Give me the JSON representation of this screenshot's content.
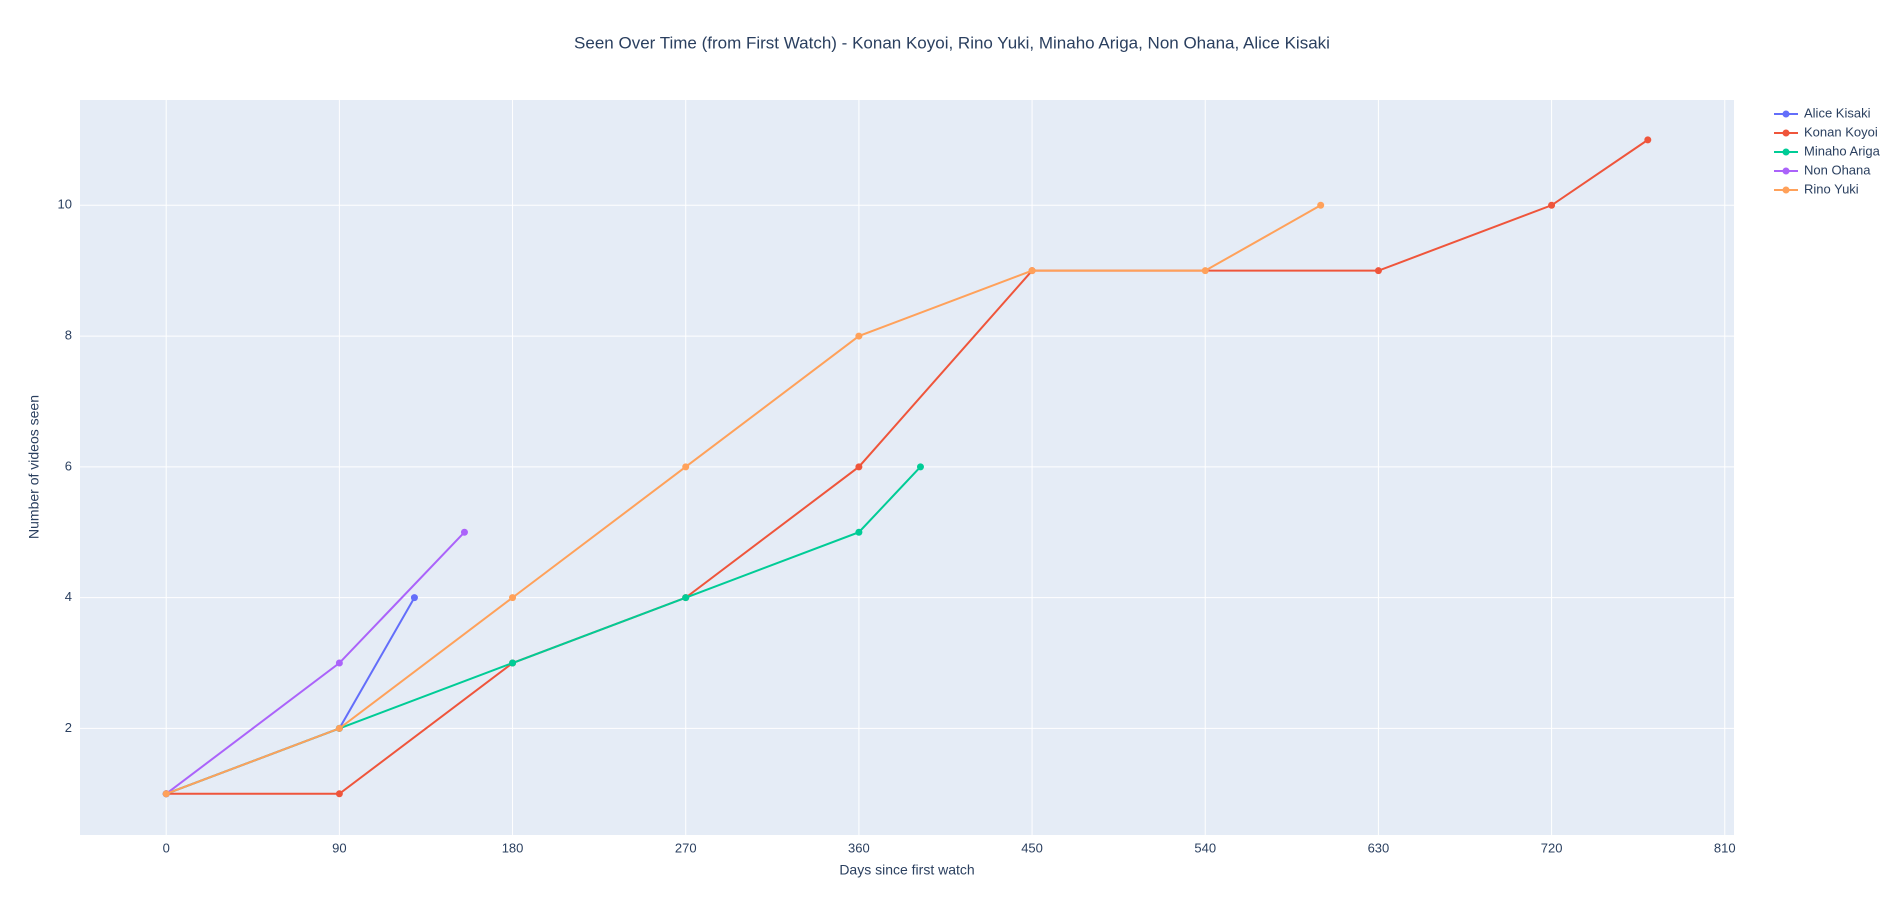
{
  "chart_data": {
    "type": "line",
    "title": "Seen Over Time (from First Watch) - Konan Koyoi, Rino Yuki, Minaho Ariga, Non Ohana, Alice Kisaki",
    "x_label": "Days since first watch",
    "y_label": "Number of videos seen",
    "xlim": [
      -44.8,
      814.8
    ],
    "ylim": [
      0.37,
      11.61
    ],
    "xticks": [
      0,
      90,
      180,
      270,
      360,
      450,
      540,
      630,
      720,
      810
    ],
    "yticks": [
      2,
      4,
      6,
      8,
      10
    ],
    "grid": true,
    "legend": "right",
    "series": [
      {
        "name": "Alice Kisaki",
        "color": "#636efa",
        "x": [
          0,
          90,
          129
        ],
        "values": [
          1,
          2,
          4
        ]
      },
      {
        "name": "Konan Koyoi",
        "color": "#EF553B",
        "x": [
          0,
          90,
          180,
          270,
          360,
          450,
          630,
          720,
          770
        ],
        "values": [
          1,
          1,
          3,
          4,
          6,
          9,
          9,
          10,
          11
        ]
      },
      {
        "name": "Minaho Ariga",
        "color": "#00cc96",
        "x": [
          0,
          90,
          180,
          270,
          360,
          392
        ],
        "values": [
          1,
          2,
          3,
          4,
          5,
          6
        ]
      },
      {
        "name": "Non Ohana",
        "color": "#ab63fa",
        "x": [
          0,
          90,
          155
        ],
        "values": [
          1,
          3,
          5
        ]
      },
      {
        "name": "Rino Yuki",
        "color": "#FFA15A",
        "x": [
          0,
          90,
          180,
          270,
          360,
          450,
          540,
          600
        ],
        "values": [
          1,
          2,
          4,
          6,
          8,
          9,
          9,
          10
        ]
      }
    ]
  }
}
